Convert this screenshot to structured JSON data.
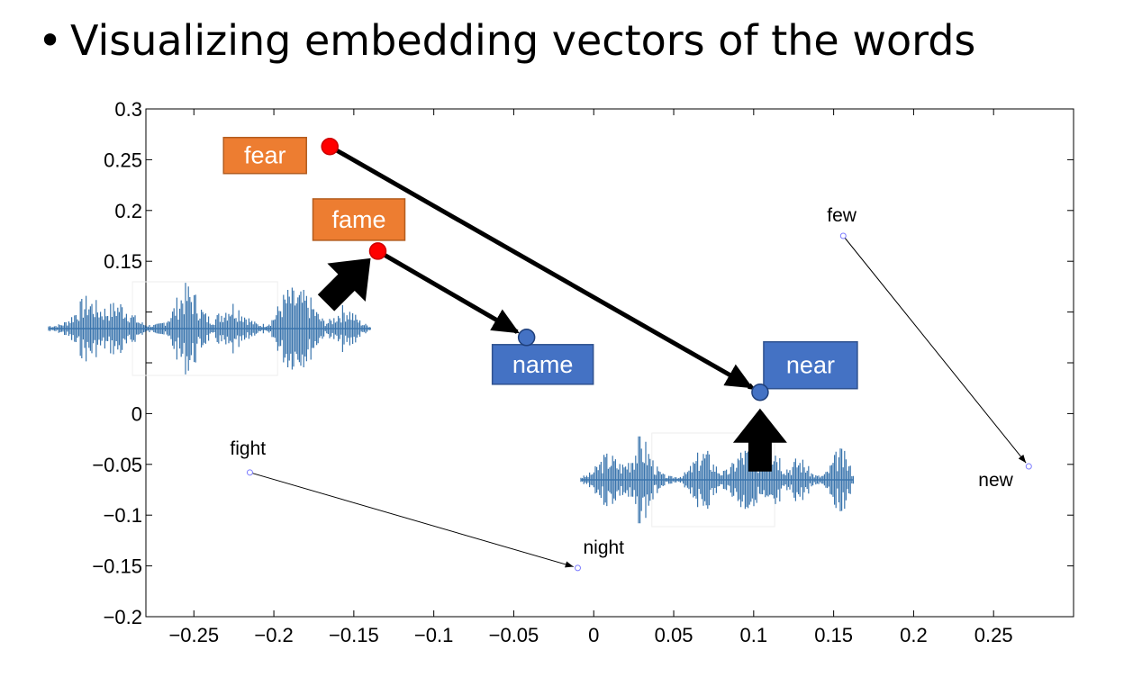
{
  "slide": {
    "bullet": "•",
    "title": "Visualizing embedding vectors of the words"
  },
  "chart_data": {
    "type": "scatter",
    "xlim": [
      -0.28,
      0.3
    ],
    "ylim": [
      -0.2,
      0.3
    ],
    "xticks": [
      -0.25,
      -0.2,
      -0.15,
      -0.1,
      -0.05,
      0,
      0.05,
      0.1,
      0.15,
      0.2,
      0.25
    ],
    "xtick_labels": [
      "−0.25",
      "−0.2",
      "−0.15",
      "−0.1",
      "−0.05",
      "0",
      "0.05",
      "0.1",
      "0.15",
      "0.2",
      "0.25"
    ],
    "yticks": [
      0.3,
      0.25,
      0.2,
      0.15,
      0.1,
      0.05,
      0,
      -0.05,
      -0.1,
      -0.15,
      -0.2
    ],
    "ytick_labels": [
      "0.3",
      "0.25",
      "0.2",
      "0.15",
      "",
      "",
      "0",
      "−0.05",
      "−0.1",
      "−0.15",
      "−0.2"
    ],
    "points": [
      {
        "word": "fight",
        "x": -0.215,
        "y": -0.058
      },
      {
        "word": "night",
        "x": -0.01,
        "y": -0.152
      },
      {
        "word": "few",
        "x": 0.156,
        "y": 0.175
      },
      {
        "word": "new",
        "x": 0.272,
        "y": -0.052
      }
    ],
    "highlighted_points": [
      {
        "word": "fear",
        "x": -0.165,
        "y": 0.263,
        "color": "#ff0000"
      },
      {
        "word": "fame",
        "x": -0.135,
        "y": 0.16,
        "color": "#ff0000"
      },
      {
        "word": "name",
        "x": -0.042,
        "y": 0.075,
        "color": "#4472c4"
      },
      {
        "word": "near",
        "x": 0.104,
        "y": 0.021,
        "color": "#4472c4"
      }
    ],
    "thin_arrows": [
      {
        "from": "fight",
        "to": "night"
      },
      {
        "from": "few",
        "to": "new"
      },
      {
        "from": "fear",
        "to": "near"
      }
    ],
    "bold_arrows": [
      {
        "from": "fear",
        "to": "near"
      },
      {
        "from": "fame",
        "to": "name"
      }
    ],
    "grid": false,
    "colors": {
      "orange_box": "#ed7d31",
      "blue_box": "#4472c4",
      "waveform": "#3a75ad"
    }
  }
}
